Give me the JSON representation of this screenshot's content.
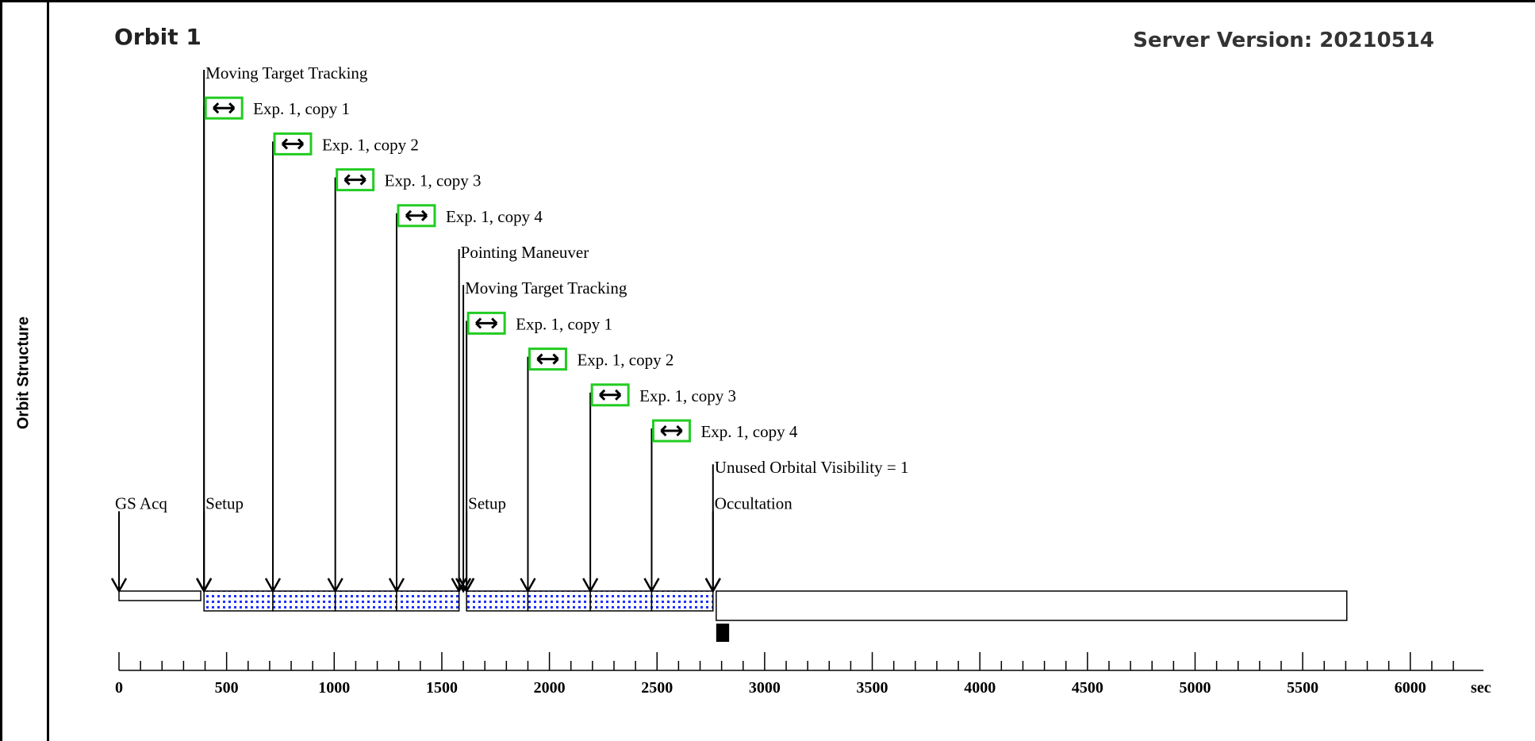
{
  "page": {
    "side_label": "Orbit Structure",
    "orbit_title": "Orbit 1",
    "server_version": "Server Version: 20210514"
  },
  "colors": {
    "exposure_fill": "#1a2fff",
    "exposure_border": "#22cc22",
    "line": "#000000"
  },
  "timeline": {
    "unit_label": "sec",
    "axis_max": 6200,
    "ticks_major": [
      0,
      500,
      1000,
      1500,
      2000,
      2500,
      3000,
      3500,
      4000,
      4500,
      5000,
      5500,
      6000
    ],
    "minor_step": 100,
    "segments": [
      {
        "name": "gs-acq",
        "start": 0,
        "end": 380,
        "fill": "empty"
      },
      {
        "name": "setup-1",
        "start": 395,
        "end": 715,
        "fill": "dots"
      },
      {
        "name": "exp-1-copy-1",
        "start": 715,
        "end": 1005,
        "fill": "dots"
      },
      {
        "name": "exp-1-copy-2",
        "start": 1005,
        "end": 1290,
        "fill": "dots"
      },
      {
        "name": "exp-1-copy-3",
        "start": 1290,
        "end": 1580,
        "fill": "dots"
      },
      {
        "name": "setup-2",
        "start": 1615,
        "end": 1900,
        "fill": "dots"
      },
      {
        "name": "exp-2-copy-1",
        "start": 1900,
        "end": 2190,
        "fill": "dots"
      },
      {
        "name": "exp-2-copy-2",
        "start": 2190,
        "end": 2475,
        "fill": "dots"
      },
      {
        "name": "exp-2-copy-3",
        "start": 2475,
        "end": 2760,
        "fill": "dots"
      }
    ],
    "occultation_bar": {
      "start": 2775,
      "end": 5705
    },
    "occultation_marker": {
      "start": 2775,
      "end": 2835
    },
    "events": [
      {
        "label": "GS Acq",
        "t": 0,
        "row": 12,
        "exposure": false,
        "label_right": true
      },
      {
        "label": "Moving Target Tracking",
        "t": 395,
        "row": 0,
        "exposure": false
      },
      {
        "label": "Exp. 1, copy 1",
        "t": 395,
        "row": 1,
        "exposure": true
      },
      {
        "label": "Exp. 1, copy 2",
        "t": 715,
        "row": 2,
        "exposure": true
      },
      {
        "label": "Exp. 1, copy 3",
        "t": 1005,
        "row": 3,
        "exposure": true
      },
      {
        "label": "Exp. 1, copy 4",
        "t": 1290,
        "row": 4,
        "exposure": true
      },
      {
        "label": "Setup",
        "t": 395,
        "row": 12,
        "exposure": false
      },
      {
        "label": "Pointing Maneuver",
        "t": 1580,
        "row": 5,
        "exposure": false
      },
      {
        "label": "Moving Target Tracking",
        "t": 1600,
        "row": 6,
        "exposure": false
      },
      {
        "label": "Exp. 1, copy 1",
        "t": 1615,
        "row": 7,
        "exposure": true
      },
      {
        "label": "Exp. 1, copy 2",
        "t": 1900,
        "row": 8,
        "exposure": true
      },
      {
        "label": "Exp. 1, copy 3",
        "t": 2190,
        "row": 9,
        "exposure": true
      },
      {
        "label": "Exp. 1, copy 4",
        "t": 2475,
        "row": 10,
        "exposure": true
      },
      {
        "label": "Setup",
        "t": 1615,
        "row": 12,
        "exposure": false
      },
      {
        "label": "Unused Orbital Visibility = 1",
        "t": 2760,
        "row": 11,
        "exposure": false
      },
      {
        "label": "Occultation",
        "t": 2760,
        "row": 12,
        "exposure": false
      }
    ]
  }
}
